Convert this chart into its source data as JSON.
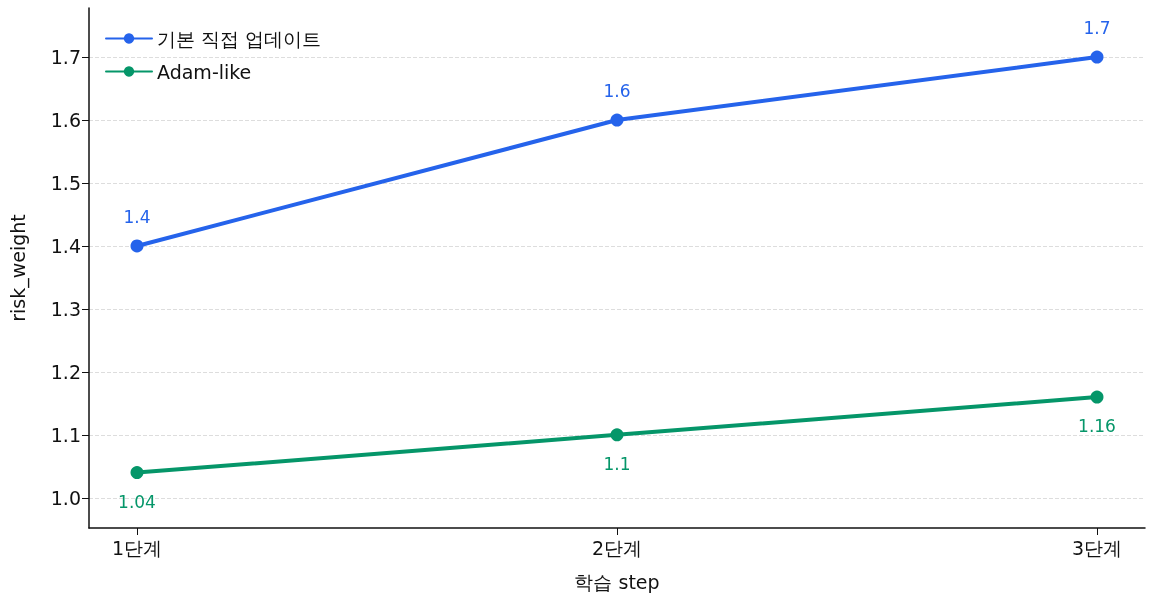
{
  "chart_data": {
    "type": "line",
    "xlabel": "학습 step",
    "ylabel": "risk_weight",
    "categories": [
      "1단계",
      "2단계",
      "3단계"
    ],
    "series": [
      {
        "name": "기본 직접 업데이트",
        "color": "#2563eb",
        "values": [
          1.4,
          1.6,
          1.7
        ]
      },
      {
        "name": "Adam-like",
        "color": "#059669",
        "values": [
          1.04,
          1.1,
          1.16
        ]
      }
    ],
    "ylim": [
      0.952,
      1.778
    ],
    "yticks": [
      {
        "value": 1,
        "label": "1.0"
      },
      1.1,
      1.2,
      1.3,
      1.4,
      1.5,
      1.6,
      1.7
    ],
    "grid": "y",
    "legend": "top left",
    "marker": "circle",
    "line_style": "solid",
    "data_labels": true
  }
}
